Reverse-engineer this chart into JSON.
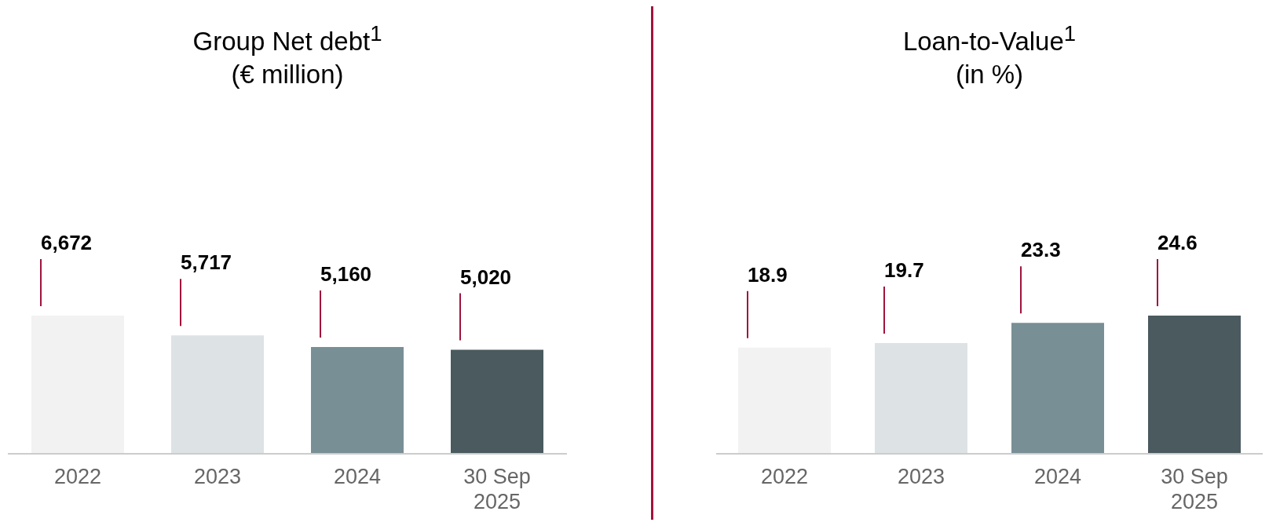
{
  "chart_data": [
    {
      "type": "bar",
      "title": "Group Net debt$^{1}$",
      "subtitle": "(€ million)",
      "categories": [
        "2022",
        "2023",
        "2024",
        "30 Sep 2025"
      ],
      "values": [
        6672,
        5717,
        5160,
        5020
      ],
      "value_labels": [
        "6,672",
        "5,717",
        "5,160",
        "5,020"
      ],
      "colors": [
        "#f2f2f2",
        "#dde2e4",
        "#788f95",
        "#4a5a5f"
      ],
      "grid": false,
      "legend": false
    },
    {
      "type": "bar",
      "title": "Loan-to-Value$^{1}$",
      "subtitle": "(in %)",
      "categories": [
        "2022",
        "2023",
        "2024",
        "30 Sep 2025"
      ],
      "values": [
        18.9,
        19.7,
        23.3,
        24.6
      ],
      "colors": [
        "#f2f2f2",
        "#dde2e4",
        "#788f95",
        "#4a5a5f"
      ],
      "data_labels": true,
      "grid": false,
      "legend": false
    }
  ]
}
